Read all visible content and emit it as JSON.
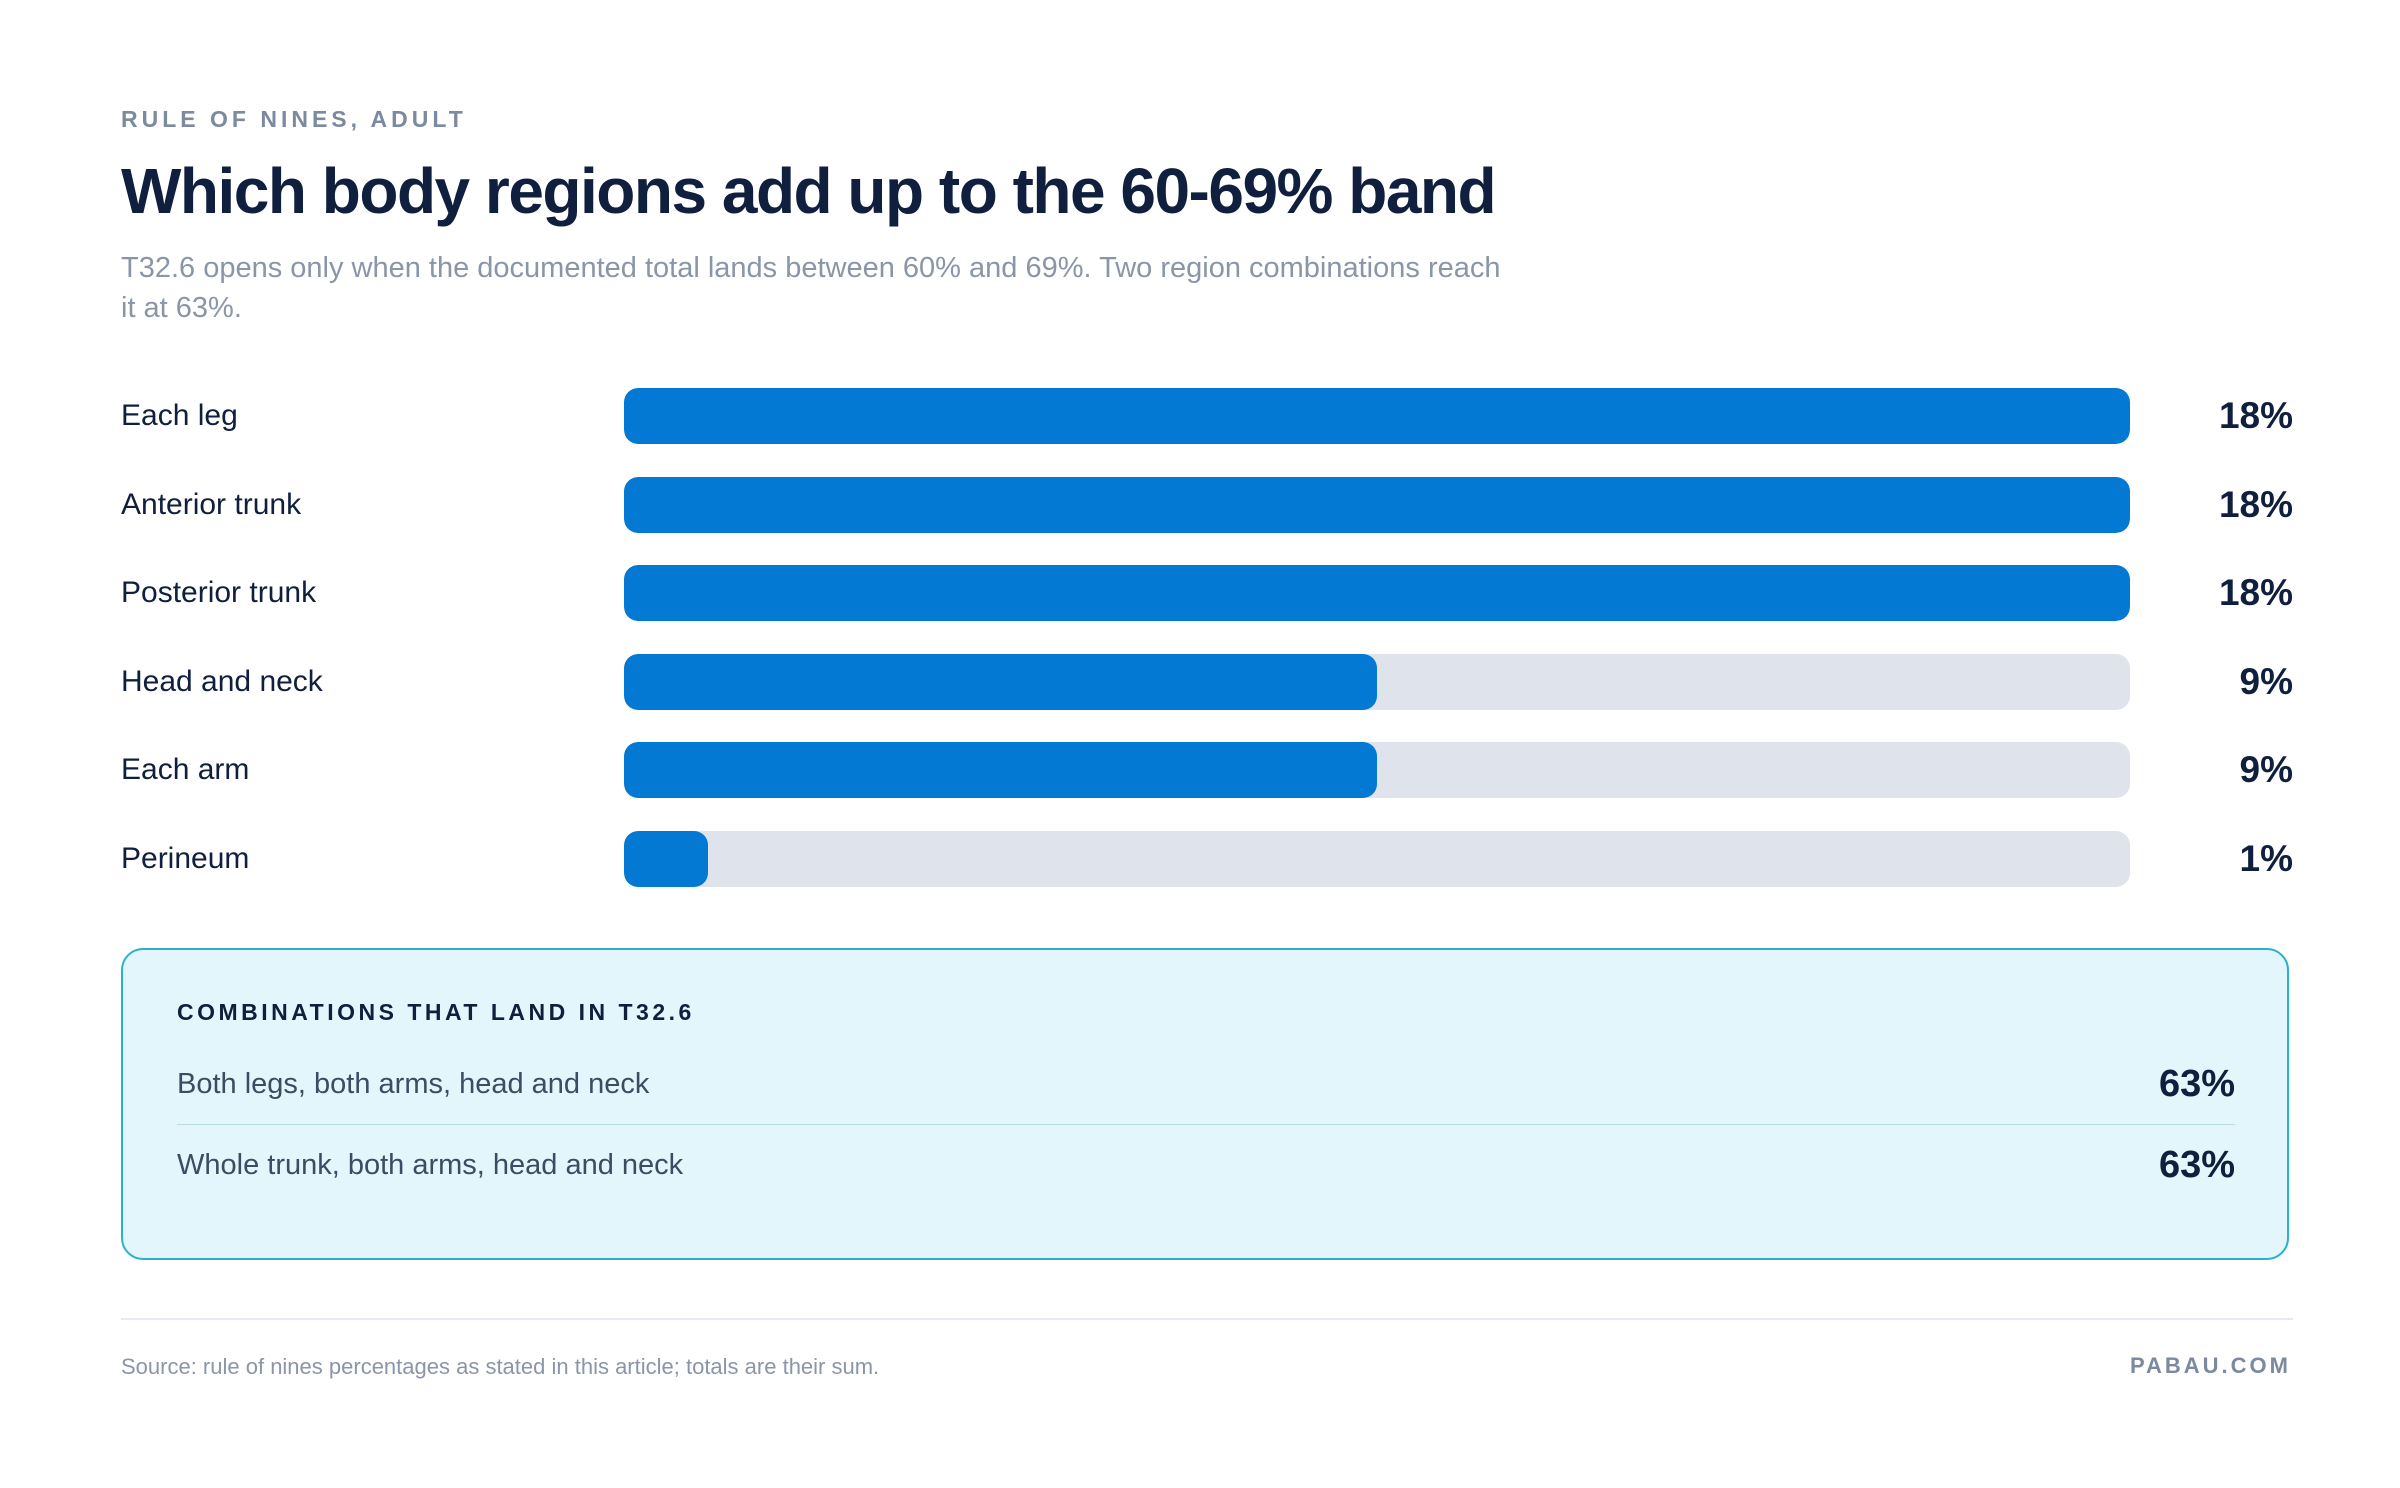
{
  "header": {
    "eyebrow": "RULE OF NINES, ADULT",
    "title": "Which body regions add up to the 60-69% band",
    "subtitle": "T32.6 opens only when the documented total lands between 60% and 69%. Two region combinations reach it at 63%."
  },
  "colors": {
    "bar_fill": "#0479d3",
    "bar_track": "#dfe3ec",
    "panel_bg": "#e3f6fb",
    "panel_border": "#2ab3c8"
  },
  "chart_data": {
    "type": "bar",
    "orientation": "horizontal",
    "title": "Which body regions add up to the 60-69% band",
    "categories": [
      "Each leg",
      "Anterior trunk",
      "Posterior trunk",
      "Head and neck",
      "Each arm",
      "Perineum"
    ],
    "values": [
      18,
      18,
      18,
      9,
      9,
      1
    ],
    "value_labels": [
      "18%",
      "18%",
      "18%",
      "9%",
      "9%",
      "1%"
    ],
    "xlim": [
      0,
      18
    ],
    "grid": false,
    "legend": "none",
    "xlabel": "",
    "ylabel": ""
  },
  "combinations": {
    "heading": "COMBINATIONS THAT LAND IN T32.6",
    "items": [
      {
        "label": "Both legs, both arms, head and neck",
        "value": "63%"
      },
      {
        "label": "Whole trunk, both arms, head and neck",
        "value": "63%"
      }
    ]
  },
  "footer": {
    "source": "Source: rule of nines percentages as stated in this article; totals are their sum.",
    "brand": "PABAU.COM"
  }
}
